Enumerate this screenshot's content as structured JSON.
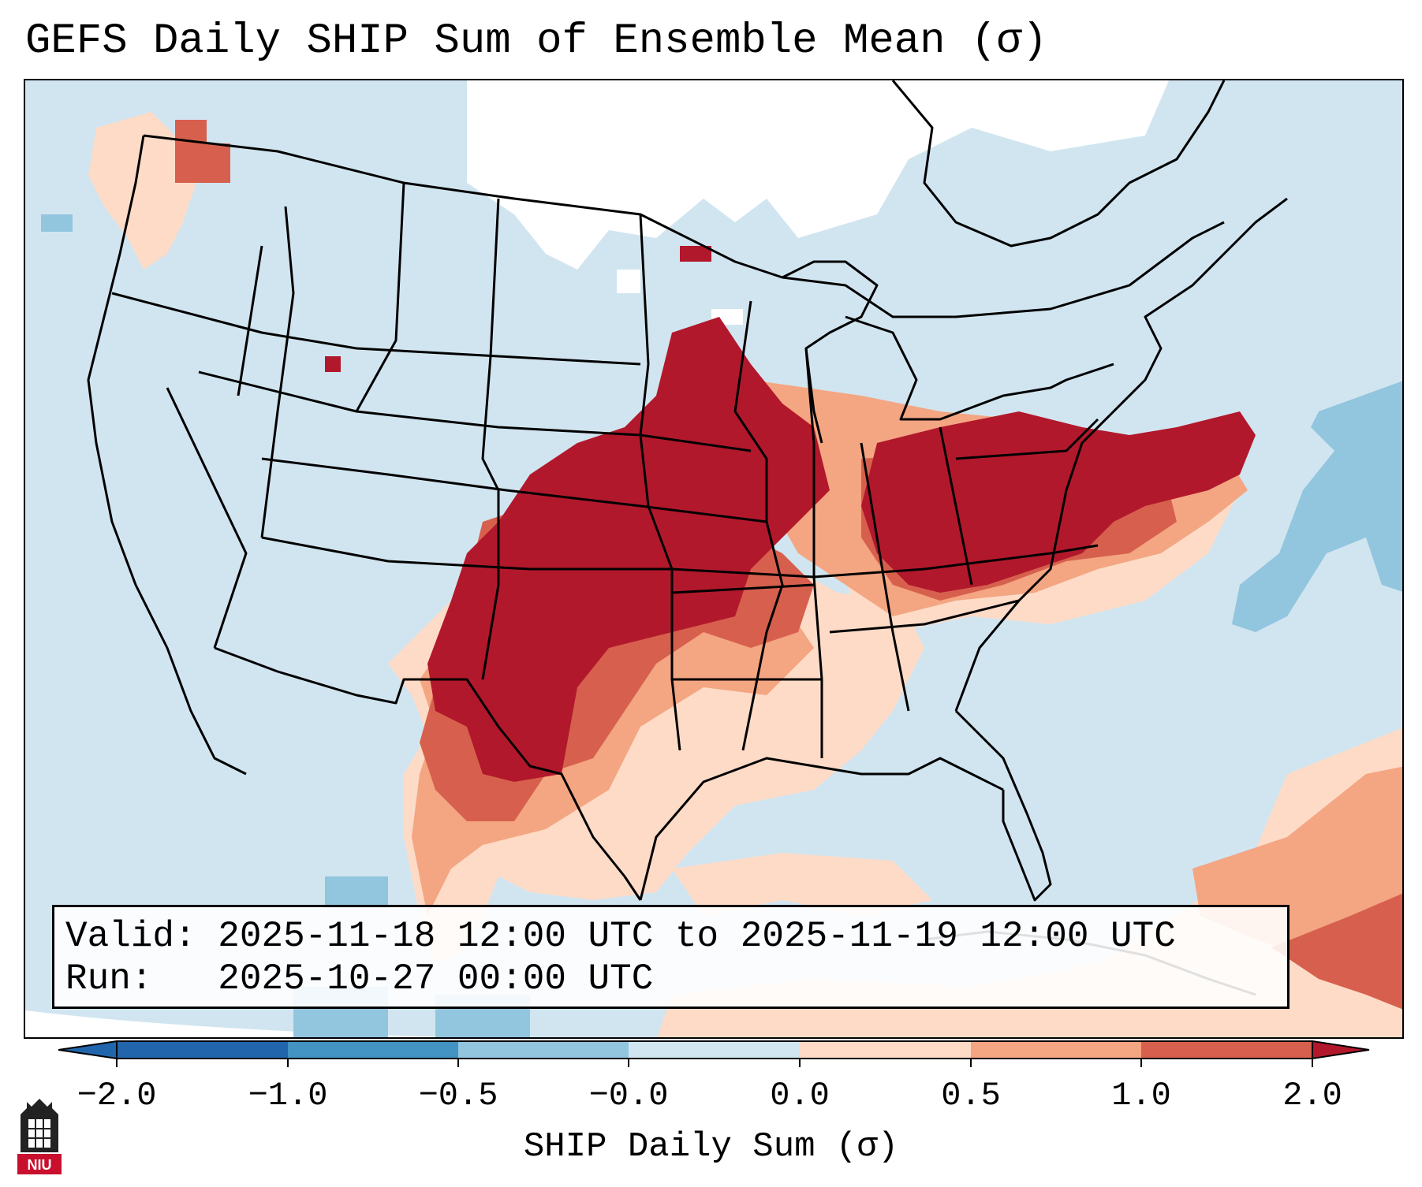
{
  "title": "GEFS Daily SHIP Sum of Ensemble Mean (σ)",
  "info": {
    "valid_label": "Valid:",
    "valid_value": "2025-11-18 12:00 UTC to 2025-11-19 12:00 UTC",
    "run_label": "Run:",
    "run_value": "2025-10-27 00:00 UTC"
  },
  "colorbar": {
    "label": "SHIP Daily Sum (σ)",
    "ticks": [
      "−2.0",
      "−1.0",
      "−0.5",
      "−0.0",
      "0.0",
      "0.5",
      "1.0",
      "2.0"
    ],
    "colors": [
      "#2166ac",
      "#4393c3",
      "#92c5de",
      "#d1e5f0",
      "#fddbc7",
      "#f4a582",
      "#d6604d",
      "#b2182b"
    ]
  },
  "map_colors": {
    "background": "#d1e5f0",
    "none": "#ffffff",
    "water_neg": "#92c5de",
    "pos_light": "#fddbc7",
    "pos_mid": "#f4a582",
    "pos_high": "#d6604d",
    "pos_max": "#b2182b"
  },
  "logo": {
    "text": "NIU",
    "icon": "niu-logo-icon",
    "color": "#c8102e"
  }
}
